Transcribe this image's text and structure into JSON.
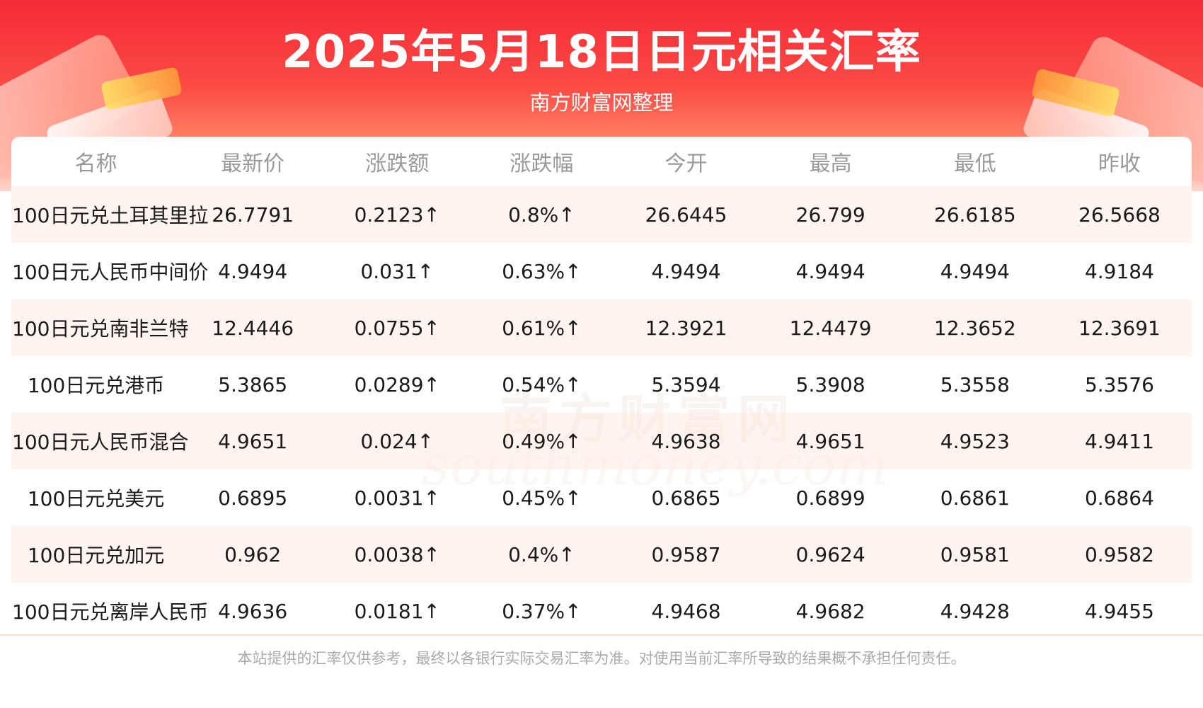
{
  "header": {
    "title": "2025年5月18日日元相关汇率",
    "subtitle": "南方财富网整理"
  },
  "watermark": {
    "cn": "南方财富网",
    "en": "southmoney.com"
  },
  "table": {
    "columns": [
      "名称",
      "最新价",
      "涨跌额",
      "涨跌幅",
      "今开",
      "最高",
      "最低",
      "昨收"
    ],
    "rows": [
      [
        "100日元兑土耳其里拉",
        "26.7791",
        "0.2123↑",
        "0.8%↑",
        "26.6445",
        "26.799",
        "26.6185",
        "26.5668"
      ],
      [
        "100日元人民币中间价",
        "4.9494",
        "0.031↑",
        "0.63%↑",
        "4.9494",
        "4.9494",
        "4.9494",
        "4.9184"
      ],
      [
        "100日元兑南非兰特",
        "12.4446",
        "0.0755↑",
        "0.61%↑",
        "12.3921",
        "12.4479",
        "12.3652",
        "12.3691"
      ],
      [
        "100日元兑港币",
        "5.3865",
        "0.0289↑",
        "0.54%↑",
        "5.3594",
        "5.3908",
        "5.3558",
        "5.3576"
      ],
      [
        "100日元人民币混合",
        "4.9651",
        "0.024↑",
        "0.49%↑",
        "4.9638",
        "4.9651",
        "4.9523",
        "4.9411"
      ],
      [
        "100日元兑美元",
        "0.6895",
        "0.0031↑",
        "0.45%↑",
        "0.6865",
        "0.6899",
        "0.6861",
        "0.6864"
      ],
      [
        "100日元兑加元",
        "0.962",
        "0.0038↑",
        "0.4%↑",
        "0.9587",
        "0.9624",
        "0.9581",
        "0.9582"
      ],
      [
        "100日元兑离岸人民币",
        "4.9636",
        "0.0181↑",
        "0.37%↑",
        "4.9468",
        "4.9682",
        "4.9428",
        "4.9455"
      ]
    ]
  },
  "footer": {
    "disclaimer": "本站提供的汇率仅供参考，最终以各银行实际交易汇率为准。对使用当前汇率所导致的结果概不承担任何责任。"
  },
  "colors": {
    "header_red": "#f52b37",
    "up_red": "#f5222d",
    "row_stripe": "#fff0e9"
  }
}
